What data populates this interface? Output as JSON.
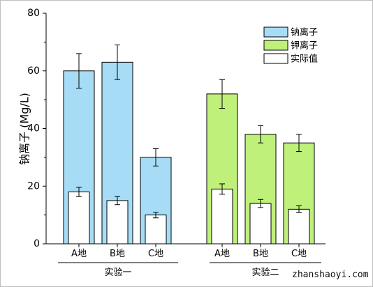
{
  "chart_data": {
    "type": "bar",
    "ylabel": "钠离子 (Mg/L)",
    "ylim": [
      0,
      80
    ],
    "yticks": [
      0,
      20,
      40,
      60,
      80
    ],
    "groups": [
      {
        "name": "实验一",
        "categories": [
          "A地",
          "B地",
          "C地"
        ],
        "ion": "钠离子",
        "values": [
          60,
          63,
          30
        ],
        "errors": [
          6,
          6,
          3
        ],
        "actual": [
          18,
          15,
          10
        ],
        "actual_errors": [
          1.6,
          1.4,
          1.0
        ]
      },
      {
        "name": "实验二",
        "categories": [
          "A地",
          "B地",
          "C地"
        ],
        "ion": "钾离子",
        "values": [
          52,
          38,
          35
        ],
        "errors": [
          5,
          3,
          3
        ],
        "actual": [
          19,
          14,
          12
        ],
        "actual_errors": [
          1.8,
          1.4,
          1.2
        ]
      }
    ],
    "legend": {
      "position": "top-right",
      "items": [
        {
          "label": "钠离子",
          "color": "#a6dcf5"
        },
        {
          "label": "钾离子",
          "color": "#bff07a"
        },
        {
          "label": "实际值",
          "color": "#ffffff"
        }
      ]
    },
    "grid": false
  },
  "watermark": "zhanshaoyi.com"
}
